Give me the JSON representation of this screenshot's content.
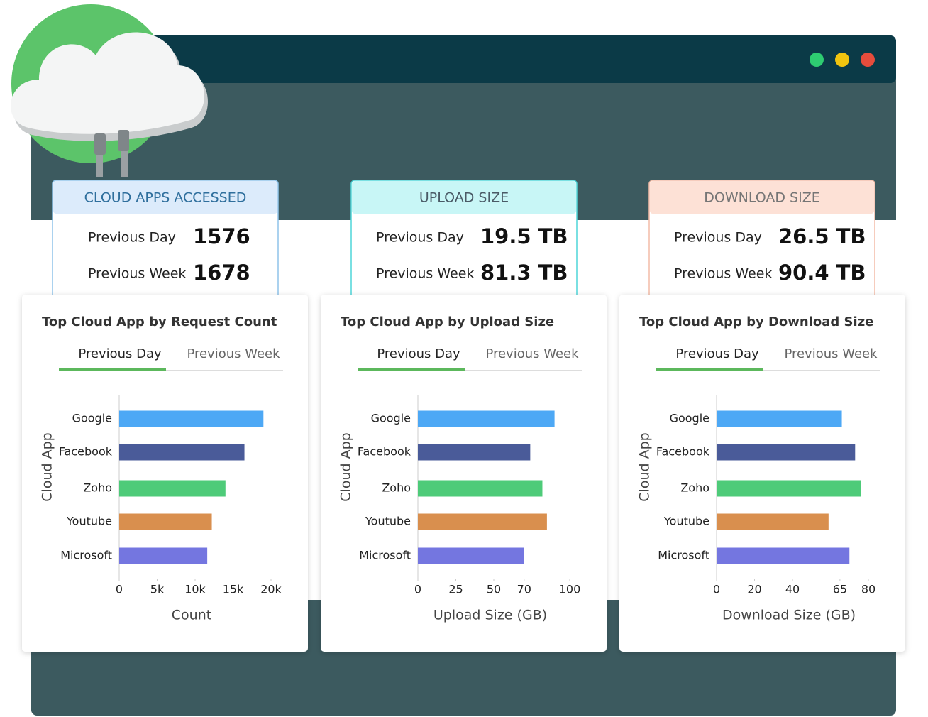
{
  "cards": [
    {
      "title": "CLOUD APPS ACCESSED",
      "rows": [
        {
          "label": "Previous Day",
          "value": 1576
        },
        {
          "label": "Previous Week",
          "value": 1678
        }
      ]
    },
    {
      "title": "UPLOAD SIZE",
      "rows": [
        {
          "label": "Previous Day",
          "value": "19.5 TB"
        },
        {
          "label": "Previous Week",
          "value": "81.3 TB"
        }
      ]
    },
    {
      "title": "DOWNLOAD SIZE",
      "rows": [
        {
          "label": "Previous Day",
          "value": "26.5 TB"
        },
        {
          "label": "Previous Week",
          "value": "90.4 TB"
        }
      ]
    }
  ],
  "chart_data": [
    {
      "type": "bar",
      "orientation": "horizontal",
      "title": "Top Cloud App by Request Count",
      "tabs": [
        "Previous Day",
        "Previous Week"
      ],
      "active_tab": 0,
      "y_label": "Cloud App",
      "x_label": "Count",
      "categories": [
        "Google",
        "Facebook",
        "Zoho",
        "Youtube",
        "Microsoft"
      ],
      "values": [
        19000,
        16500,
        14000,
        12200,
        11600
      ],
      "colors": [
        "#4da8f5",
        "#4a5b99",
        "#4ecb79",
        "#d98f4e",
        "#7476e0"
      ],
      "xlim": [
        0,
        20000
      ],
      "xticks": [
        0,
        {
          "value": 5000,
          "label": "5k"
        },
        {
          "value": 10000,
          "label": "10k"
        },
        {
          "value": 15000,
          "label": "15k"
        },
        {
          "value": 20000,
          "label": "20k"
        }
      ]
    },
    {
      "type": "bar",
      "orientation": "horizontal",
      "title": "Top Cloud App by Upload Size",
      "tabs": [
        "Previous Day",
        "Previous Week"
      ],
      "active_tab": 0,
      "y_label": "Cloud App",
      "x_label": "Upload Size (GB)",
      "categories": [
        "Google",
        "Facebook",
        "Zoho",
        "Youtube",
        "Microsoft"
      ],
      "values": [
        90,
        74,
        82,
        85,
        70
      ],
      "colors": [
        "#4da8f5",
        "#4a5b99",
        "#4ecb79",
        "#d98f4e",
        "#7476e0"
      ],
      "xlim": [
        0,
        100
      ],
      "xticks": [
        0,
        25,
        50,
        70,
        100
      ]
    },
    {
      "type": "bar",
      "orientation": "horizontal",
      "title": "Top Cloud App by Download Size",
      "tabs": [
        "Previous Day",
        "Previous Week"
      ],
      "active_tab": 0,
      "y_label": "Cloud App",
      "x_label": "Download Size (GB)",
      "categories": [
        "Google",
        "Facebook",
        "Zoho",
        "Youtube",
        "Microsoft"
      ],
      "values": [
        66,
        73,
        76,
        59,
        70
      ],
      "colors": [
        "#4da8f5",
        "#4a5b99",
        "#4ecb79",
        "#d98f4e",
        "#7476e0"
      ],
      "xlim": [
        0,
        80
      ],
      "xticks": [
        0,
        20,
        40,
        65,
        80
      ]
    }
  ]
}
